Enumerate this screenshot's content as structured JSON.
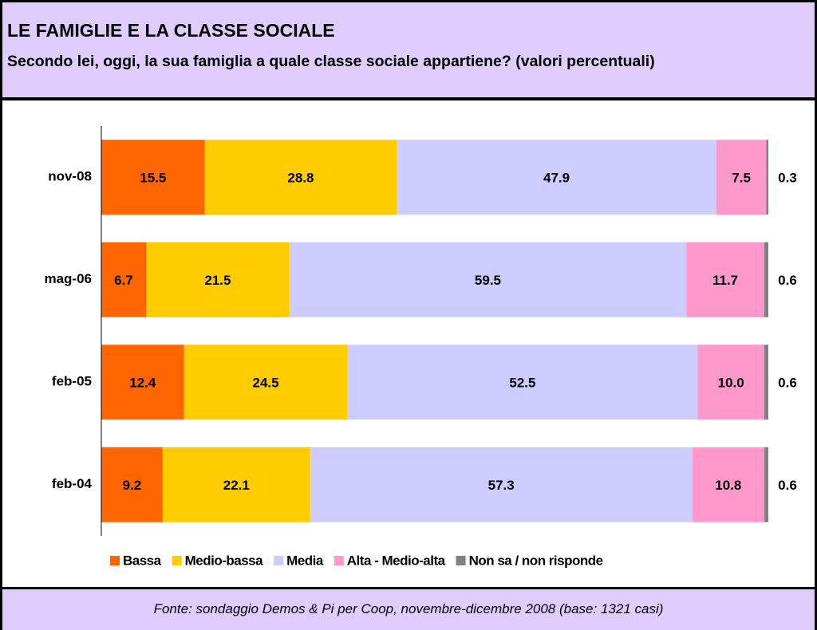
{
  "chart_data": {
    "type": "stacked_barh",
    "title": "LE FAMIGLIE E LA CLASSE SOCIALE",
    "subtitle": "Secondo lei, oggi, la sua famiglia a quale classe sociale appartiene? (valori percentuali)",
    "source": "Fonte: sondaggio Demos & Pi per Coop, novembre-dicembre 2008 (base: 1321 casi)",
    "categories": [
      "nov-08",
      "mag-06",
      "feb-05",
      "feb-04"
    ],
    "series": [
      {
        "name": "Bassa",
        "color": "#ff6600",
        "values": [
          15.5,
          6.7,
          12.4,
          9.2
        ],
        "value_labels": [
          "15.5",
          "6.7",
          "12.4",
          "9.2"
        ]
      },
      {
        "name": "Medio-bassa",
        "color": "#ffcc00",
        "values": [
          28.8,
          21.5,
          24.5,
          22.1
        ],
        "value_labels": [
          "28.8",
          "21.5",
          "24.5",
          "22.1"
        ]
      },
      {
        "name": "Media",
        "color": "#ccccff",
        "values": [
          47.9,
          59.5,
          52.5,
          57.3
        ],
        "value_labels": [
          "47.9",
          "59.5",
          "52.5",
          "57.3"
        ]
      },
      {
        "name": "Alta - Medio-alta",
        "color": "#ff99cc",
        "values": [
          7.5,
          11.7,
          10.0,
          10.8
        ],
        "value_labels": [
          "7.5",
          "11.7",
          "10.0",
          "10.8"
        ]
      },
      {
        "name": "Non sa / non risponde",
        "color": "#808080",
        "values": [
          0.3,
          0.6,
          0.6,
          0.6
        ],
        "value_labels": [
          "0.3",
          "0.6",
          "0.6",
          "0.6"
        ]
      }
    ],
    "xlim": [
      0,
      100
    ],
    "legend": "bottom"
  }
}
